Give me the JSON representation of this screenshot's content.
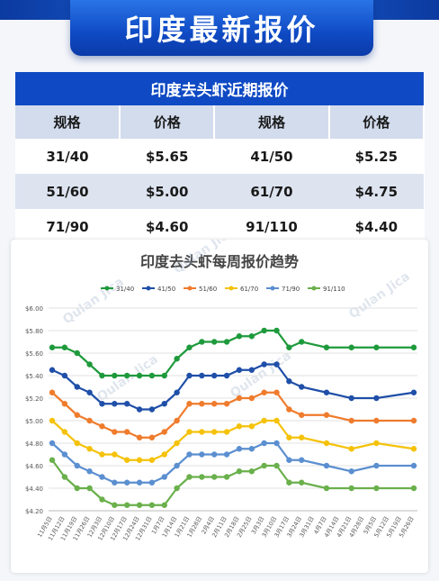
{
  "header": {
    "title": "印度最新报价"
  },
  "table": {
    "title": "印度去头虾近期报价",
    "headers": [
      "规格",
      "价格",
      "规格",
      "价格"
    ],
    "rows": [
      [
        "31/40",
        "$5.65",
        "41/50",
        "$5.25"
      ],
      [
        "51/60",
        "$5.00",
        "61/70",
        "$4.75"
      ],
      [
        "71/90",
        "$4.60",
        "91/110",
        "$4.40"
      ]
    ]
  },
  "watermark": "Qulan Jica",
  "colors": {
    "brand": "#0f4ac4",
    "series": [
      "#1e9a3c",
      "#1f4fa8",
      "#ef7b2c",
      "#f5c20a",
      "#5b8fd0",
      "#6ab04c"
    ]
  },
  "chart_data": {
    "type": "line",
    "title": "印度去头虾每周报价趋势",
    "xlabel": "",
    "ylabel": "",
    "ylim": [
      4.2,
      6.0
    ],
    "yticks": [
      "$6.00",
      "$5.80",
      "$5.60",
      "$5.40",
      "$5.20",
      "$5.00",
      "$4.80",
      "$4.60",
      "$4.40",
      "$4.20"
    ],
    "grid": true,
    "legend": "top",
    "x": [
      "11月5日",
      "11月12日",
      "11月19日",
      "11月26日",
      "12月3日",
      "12月10日",
      "12月17日",
      "12月24日",
      "12月31日",
      "1月7日",
      "1月14日",
      "1月21日",
      "1月28日",
      "2月4日",
      "2月11日",
      "2月18日",
      "2月25日",
      "3月3日",
      "3月10日",
      "3月17日",
      "3月24日",
      "3月31日",
      "4月7日",
      "4月14日",
      "4月21日",
      "4月28日",
      "5月5日",
      "5月12日",
      "5月19日",
      "5月26日"
    ],
    "series": [
      {
        "name": "31/40",
        "values": [
          5.65,
          5.65,
          5.6,
          5.5,
          5.4,
          5.4,
          5.4,
          5.4,
          5.4,
          5.4,
          5.55,
          5.65,
          5.7,
          5.7,
          5.7,
          5.75,
          5.75,
          5.8,
          5.8,
          5.65,
          5.7,
          null,
          5.65,
          null,
          5.65,
          null,
          5.65,
          null,
          null,
          5.65
        ]
      },
      {
        "name": "41/50",
        "values": [
          5.45,
          5.4,
          5.3,
          5.25,
          5.15,
          5.15,
          5.15,
          5.1,
          5.1,
          5.15,
          5.25,
          5.4,
          5.4,
          5.4,
          5.4,
          5.45,
          5.45,
          5.5,
          5.5,
          5.35,
          5.3,
          null,
          5.25,
          null,
          5.2,
          null,
          5.2,
          null,
          null,
          5.25
        ]
      },
      {
        "name": "51/60",
        "values": [
          5.25,
          5.15,
          5.05,
          5.0,
          4.95,
          4.9,
          4.9,
          4.85,
          4.85,
          4.9,
          5.0,
          5.15,
          5.15,
          5.15,
          5.15,
          5.2,
          5.2,
          5.25,
          5.25,
          5.1,
          5.05,
          null,
          5.05,
          null,
          5.0,
          null,
          5.0,
          null,
          null,
          5.0
        ]
      },
      {
        "name": "61/70",
        "values": [
          5.0,
          4.9,
          4.8,
          4.75,
          4.7,
          4.7,
          4.65,
          4.65,
          4.65,
          4.7,
          4.8,
          4.9,
          4.9,
          4.9,
          4.9,
          4.95,
          4.95,
          5.0,
          5.0,
          4.85,
          4.85,
          null,
          4.8,
          null,
          4.75,
          null,
          4.8,
          null,
          null,
          4.75
        ]
      },
      {
        "name": "71/90",
        "values": [
          4.8,
          4.7,
          4.6,
          4.55,
          4.5,
          4.45,
          4.45,
          4.45,
          4.45,
          4.5,
          4.6,
          4.7,
          4.7,
          4.7,
          4.7,
          4.75,
          4.75,
          4.8,
          4.8,
          4.65,
          4.65,
          null,
          4.6,
          null,
          4.55,
          null,
          4.6,
          null,
          null,
          4.6
        ]
      },
      {
        "name": "91/110",
        "values": [
          4.65,
          4.5,
          4.4,
          4.4,
          4.3,
          4.25,
          4.25,
          4.25,
          4.25,
          4.25,
          4.4,
          4.5,
          4.5,
          4.5,
          4.5,
          4.55,
          4.55,
          4.6,
          4.6,
          4.45,
          4.45,
          null,
          4.4,
          null,
          4.4,
          null,
          4.4,
          null,
          null,
          4.4
        ]
      }
    ]
  }
}
